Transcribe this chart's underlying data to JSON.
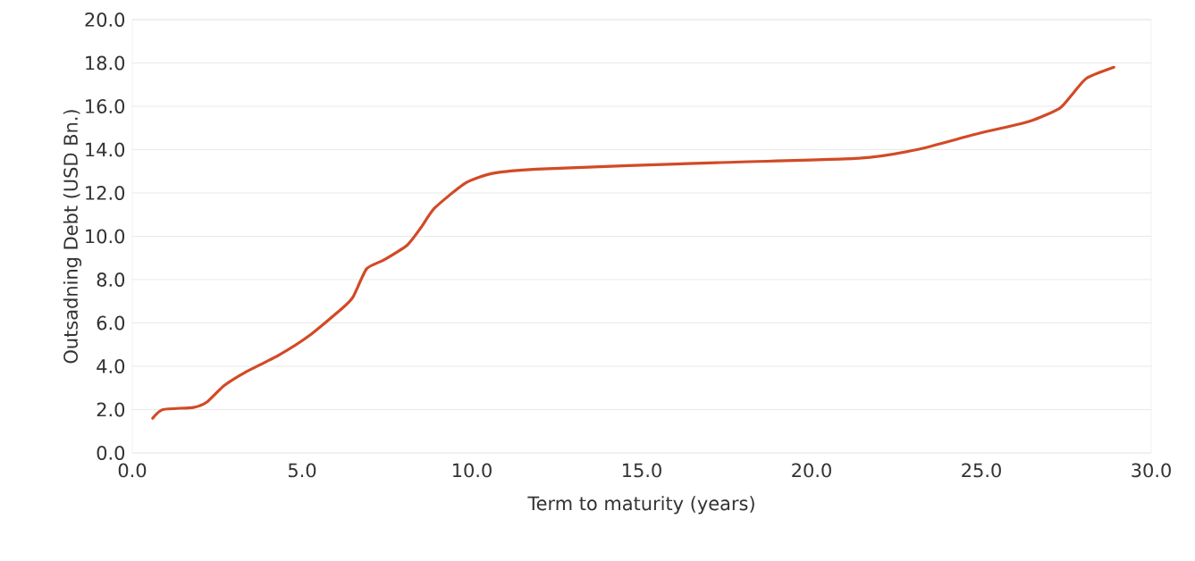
{
  "chart_data": {
    "type": "line",
    "xlabel": "Term to maturity (years)",
    "ylabel": "Outsadning Debt (USD Bn.)",
    "series": [
      {
        "color": "#d24a26",
        "x": [
          0.6,
          0.9,
          1.8,
          2.2,
          2.7,
          3.3,
          4.3,
          5.2,
          6.2,
          6.5,
          6.9,
          7.4,
          8.1,
          8.5,
          8.9,
          9.8,
          10.6,
          11.9,
          17.2,
          21.4,
          23.1,
          24.8,
          26.4,
          27.3,
          27.7,
          28.1,
          28.9
        ],
        "values": [
          1.6,
          2.0,
          2.1,
          2.35,
          3.1,
          3.7,
          4.5,
          5.4,
          6.7,
          7.2,
          8.5,
          8.9,
          9.6,
          10.4,
          11.3,
          12.45,
          12.9,
          13.1,
          13.4,
          13.6,
          14.0,
          14.7,
          15.3,
          15.9,
          16.6,
          17.3,
          17.8
        ]
      }
    ],
    "xlim": [
      0,
      30
    ],
    "ylim": [
      0,
      20
    ],
    "xticks": [
      {
        "value": 0,
        "label": "0.0"
      },
      {
        "value": 5,
        "label": "5.0"
      },
      {
        "value": 10,
        "label": "10.0"
      },
      {
        "value": 15,
        "label": "15.0"
      },
      {
        "value": 20,
        "label": "20.0"
      },
      {
        "value": 25,
        "label": "25.0"
      },
      {
        "value": 30,
        "label": "30.0"
      }
    ],
    "yticks": [
      {
        "value": 0,
        "label": "0.0"
      },
      {
        "value": 2,
        "label": "2.0"
      },
      {
        "value": 4,
        "label": "4.0"
      },
      {
        "value": 6,
        "label": "6.0"
      },
      {
        "value": 8,
        "label": "8.0"
      },
      {
        "value": 10,
        "label": "10.0"
      },
      {
        "value": 12,
        "label": "12.0"
      },
      {
        "value": 14,
        "label": "14.0"
      },
      {
        "value": 16,
        "label": "16.0"
      },
      {
        "value": 18,
        "label": "18.0"
      },
      {
        "value": 20,
        "label": "20.0"
      }
    ],
    "grid": "y",
    "line_style": "solid"
  }
}
